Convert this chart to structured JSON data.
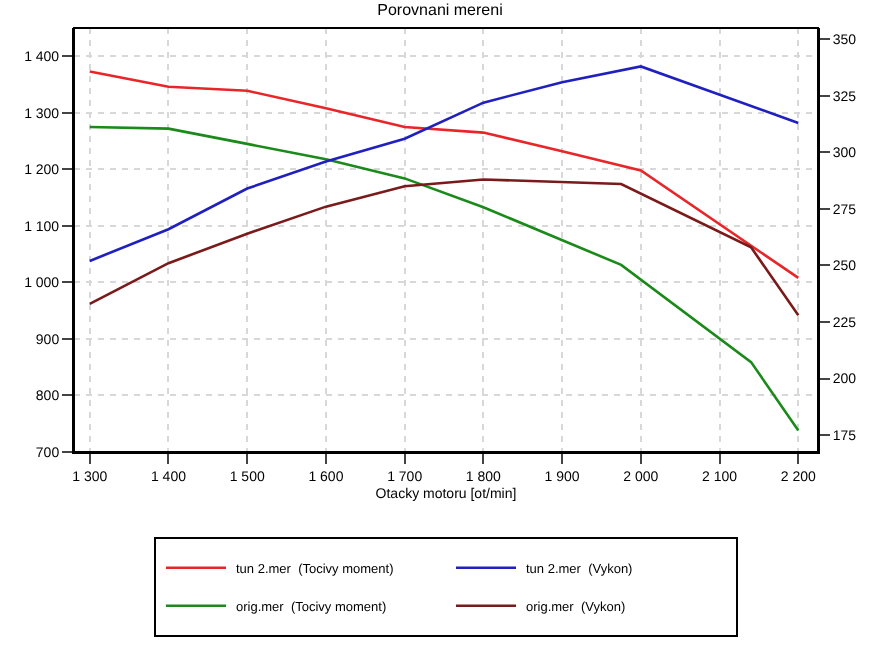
{
  "chart_data": {
    "type": "line",
    "title": "Porovnani mereni",
    "xlabel": "Otacky motoru [ot/min]",
    "xlim": [
      1280,
      2225
    ],
    "xticks": [
      {
        "value": 1300,
        "label": "1 300"
      },
      {
        "value": 1400,
        "label": "1 400"
      },
      {
        "value": 1500,
        "label": "1 500"
      },
      {
        "value": 1600,
        "label": "1 600"
      },
      {
        "value": 1700,
        "label": "1 700"
      },
      {
        "value": 1800,
        "label": "1 800"
      },
      {
        "value": 1900,
        "label": "1 900"
      },
      {
        "value": 2000,
        "label": "2 000"
      },
      {
        "value": 2100,
        "label": "2 100"
      },
      {
        "value": 2200,
        "label": "2 200"
      }
    ],
    "ylim": [
      700,
      1450
    ],
    "yticks": [
      {
        "value": 700,
        "label": "700"
      },
      {
        "value": 800,
        "label": "800"
      },
      {
        "value": 900,
        "label": "900"
      },
      {
        "value": 1000,
        "label": "1 000"
      },
      {
        "value": 1100,
        "label": "1 100"
      },
      {
        "value": 1200,
        "label": "1 200"
      },
      {
        "value": 1300,
        "label": "1 300"
      },
      {
        "value": 1400,
        "label": "1 400"
      }
    ],
    "y2lim": [
      167.5,
      355
    ],
    "y2ticks": [
      175,
      200,
      225,
      250,
      275,
      300,
      325,
      350
    ],
    "grid": true,
    "legend": "bottom",
    "marker": "none",
    "line_style": "solid",
    "series": [
      {
        "name": "tun 2.mer  (Tocivy moment)",
        "color": "#e8262a",
        "x": [
          1300,
          1400,
          1500,
          1600,
          1700,
          1800,
          1900,
          2000,
          2200
        ],
        "values": [
          1373,
          1346,
          1339,
          1308,
          1275,
          1265,
          1232,
          1198,
          1008
        ]
      },
      {
        "name": "tun 2.mer  (Vykon)",
        "color": "#2020c0",
        "axis": "y2",
        "x": [
          1300,
          1400,
          1500,
          1600,
          1700,
          1800,
          1900,
          2000,
          2200
        ],
        "values": [
          252,
          266,
          284,
          296,
          306,
          322,
          331,
          338,
          313
        ]
      },
      {
        "name": "orig.mer  (Tocivy moment)",
        "color": "#1a8a1a",
        "x": [
          1300,
          1400,
          1500,
          1600,
          1700,
          1800,
          1975,
          2140,
          2200
        ],
        "values": [
          1275,
          1272,
          1245,
          1218,
          1184,
          1133,
          1031,
          859,
          738
        ]
      },
      {
        "name": "orig.mer  (Vykon)",
        "color": "#7a1a1a",
        "axis": "y2",
        "x": [
          1300,
          1400,
          1500,
          1600,
          1700,
          1800,
          1975,
          2140,
          2200
        ],
        "values": [
          233,
          251,
          264,
          276,
          285,
          288,
          286,
          258,
          228
        ]
      }
    ]
  }
}
